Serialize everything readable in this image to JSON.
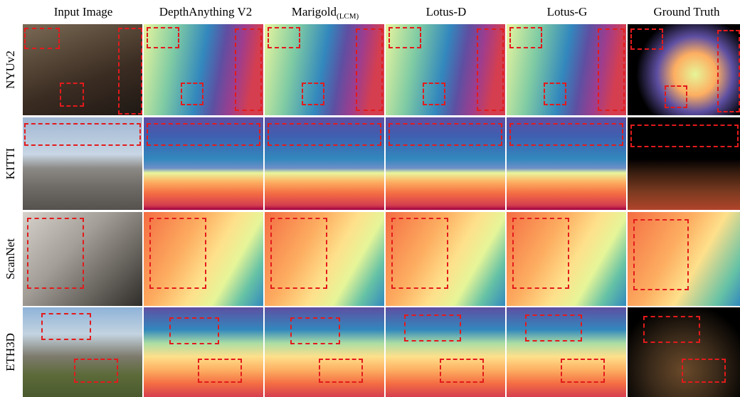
{
  "columns": [
    {
      "title": "Input Image"
    },
    {
      "title": "DepthAnything V2"
    },
    {
      "title": "Marigold",
      "subscript": "(LCM)"
    },
    {
      "title": "Lotus-D"
    },
    {
      "title": "Lotus-G"
    },
    {
      "title": "Ground Truth"
    }
  ],
  "rows": [
    {
      "label": "NYUv2"
    },
    {
      "label": "KITTI"
    },
    {
      "label": "ScanNet"
    },
    {
      "label": "ETH3D"
    }
  ],
  "colors": {
    "highlight_box": "#e31a1c"
  }
}
